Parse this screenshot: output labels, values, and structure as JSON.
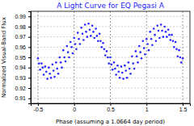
{
  "chart_data": {
    "type": "scatter",
    "title": "A Light Curve for EQ Pegasi A",
    "x_label": "Phase (assuming a 1.0664 day period)",
    "y_label": "Normalized Visual-Band Flux",
    "x": [
      -0.5,
      -0.485,
      -0.47,
      -0.45,
      -0.435,
      -0.42,
      -0.4,
      -0.385,
      -0.37,
      -0.35,
      -0.335,
      -0.32,
      -0.3,
      -0.285,
      -0.27,
      -0.25,
      -0.235,
      -0.22,
      -0.2,
      -0.185,
      -0.17,
      -0.15,
      -0.135,
      -0.12,
      -0.1,
      -0.085,
      -0.07,
      -0.05,
      -0.035,
      -0.02,
      0,
      0.015,
      0.03,
      0.05,
      0.065,
      0.08,
      0.1,
      0.115,
      0.13,
      0.15,
      0.165,
      0.18,
      0.2,
      0.215,
      0.23,
      0.25,
      0.265,
      0.28,
      0.3,
      0.315,
      0.33,
      0.35,
      0.365,
      0.38,
      0.4,
      0.415,
      0.43,
      0.45,
      0.465,
      0.48,
      0.5,
      0.515,
      0.53,
      0.55,
      0.565,
      0.58,
      0.6,
      0.615,
      0.63,
      0.65,
      0.665,
      0.68,
      0.7,
      0.715,
      0.73,
      0.75,
      0.765,
      0.78,
      0.8,
      0.815,
      0.83,
      0.85,
      0.865,
      0.88,
      0.9,
      0.915,
      0.93,
      0.95,
      0.965,
      0.98,
      1,
      1.015,
      1.03,
      1.05,
      1.065,
      1.08,
      1.1,
      1.115,
      1.13,
      1.15,
      1.165,
      1.18,
      1.2,
      1.215,
      1.23,
      1.25,
      1.265,
      1.28,
      1.3,
      1.315,
      1.33,
      1.35,
      1.365,
      1.38,
      1.4,
      1.415,
      1.43,
      1.45,
      1.465,
      1.48,
      1.5
    ],
    "series": [
      {
        "color": "#2a2aff",
        "marker": "circle",
        "values": [
          0.949,
          0.944,
          0.938,
          0.944,
          0.94,
          0.933,
          0.941,
          0.936,
          0.929,
          0.94,
          0.934,
          0.93,
          0.943,
          0.937,
          0.931,
          0.945,
          0.939,
          0.934,
          0.95,
          0.945,
          0.94,
          0.957,
          0.95,
          0.946,
          0.961,
          0.955,
          0.95,
          0.965,
          0.96,
          0.954,
          0.969,
          0.963,
          0.958,
          0.974,
          0.968,
          0.963,
          0.979,
          0.973,
          0.967,
          0.982,
          0.975,
          0.97,
          0.983,
          0.977,
          0.971,
          0.981,
          0.975,
          0.969,
          0.978,
          0.971,
          0.966,
          0.973,
          0.966,
          0.96,
          0.964,
          0.958,
          0.952,
          0.956,
          0.95,
          0.944,
          0.95,
          0.943,
          0.938,
          0.945,
          0.939,
          0.933,
          0.942,
          0.936,
          0.93,
          0.941,
          0.935,
          0.929,
          0.942,
          0.937,
          0.93,
          0.945,
          0.939,
          0.934,
          0.951,
          0.944,
          0.939,
          0.956,
          0.951,
          0.945,
          0.961,
          0.955,
          0.949,
          0.966,
          0.959,
          0.953,
          0.968,
          0.963,
          0.957,
          0.975,
          0.968,
          0.962,
          0.978,
          0.972,
          0.966,
          0.981,
          0.976,
          0.969,
          0.982,
          0.976,
          0.97,
          0.98,
          0.975,
          0.97,
          0.977,
          0.972,
          0.967,
          0.972,
          0.966,
          0.96,
          0.965,
          0.958,
          0.951,
          0.957,
          0.95,
          0.945,
          0.949
        ]
      }
    ],
    "xlim": [
      -0.6,
      1.6
    ],
    "xticks": [
      -0.5,
      0,
      0.5,
      1,
      1.5
    ],
    "ylim": [
      0.905,
      0.995
    ],
    "yticks": [
      0.91,
      0.92,
      0.93,
      0.94,
      0.95,
      0.96,
      0.97,
      0.98,
      0.99
    ],
    "grid": true
  }
}
